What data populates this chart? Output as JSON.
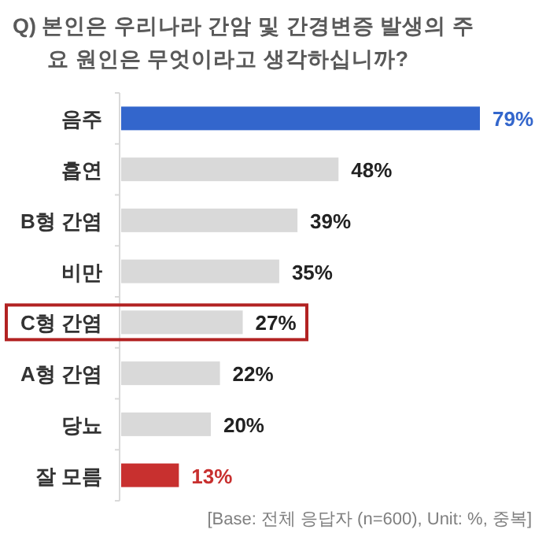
{
  "chart_data": {
    "type": "bar",
    "orientation": "horizontal",
    "title": "Q) 본인은 우리나라 간암 및 간경변증 발생의 주요 원인은 무엇이라고 생각하십니까?",
    "categories": [
      "음주",
      "흡연",
      "B형 간염",
      "비만",
      "C형 간염",
      "A형 간염",
      "당뇨",
      "잘 모름"
    ],
    "values": [
      79,
      48,
      39,
      35,
      27,
      22,
      20,
      13
    ],
    "colors": [
      "#3366cc",
      "#d9d9d9",
      "#d9d9d9",
      "#d9d9d9",
      "#d9d9d9",
      "#d9d9d9",
      "#d9d9d9",
      "#c8302f"
    ],
    "value_labels": [
      "79%",
      "48%",
      "39%",
      "35%",
      "27%",
      "22%",
      "20%",
      "13%"
    ],
    "annotations": [
      "[Base: 전체 응답자 (n=600), Unit: %, 중복]"
    ]
  }
}
